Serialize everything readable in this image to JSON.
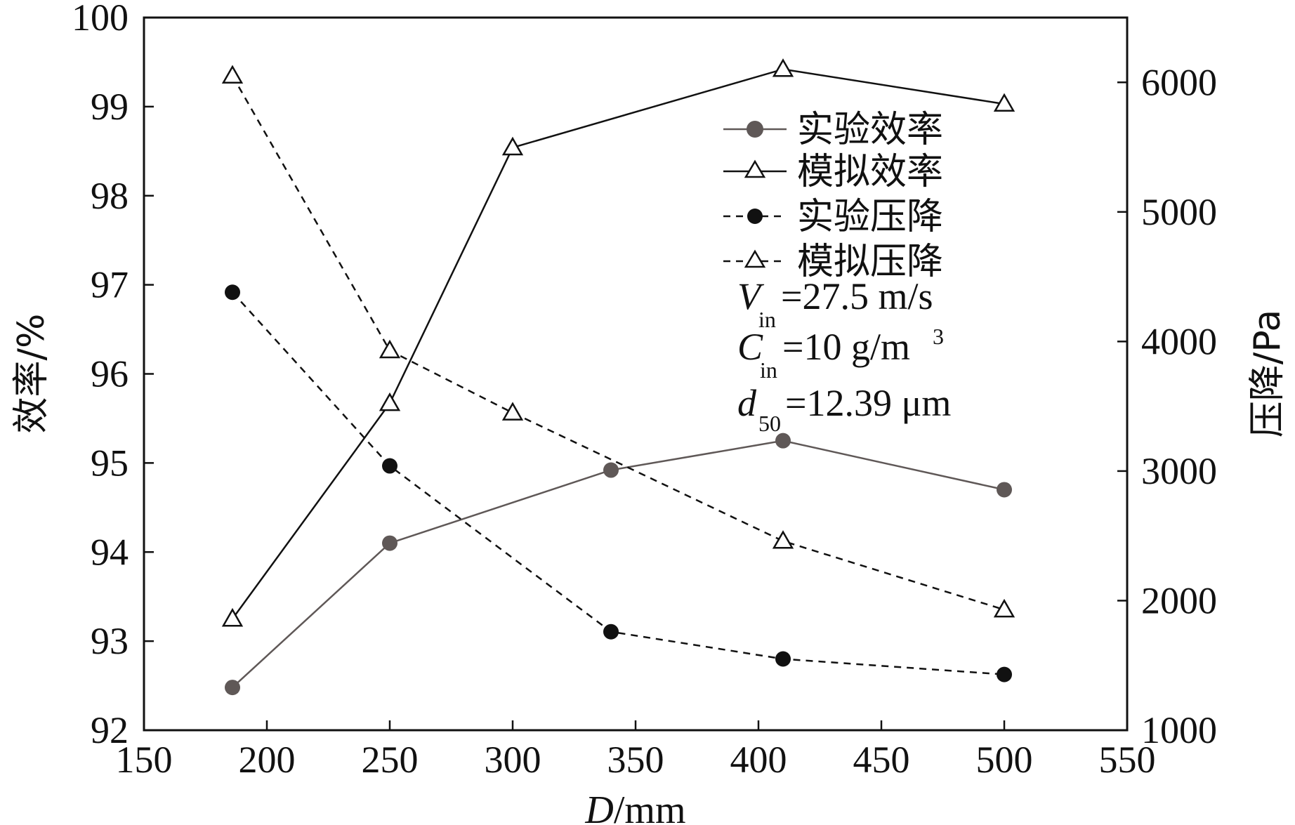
{
  "chart_data": {
    "type": "line",
    "xlabel": {
      "var": "D",
      "unit": "/mm"
    },
    "ylabel_left": "效率/%",
    "ylabel_right": "压降/Pa",
    "xlim": [
      150,
      550
    ],
    "ylim_left": [
      92,
      100
    ],
    "ylim_right": [
      1000,
      6500
    ],
    "x_ticks": [
      150,
      200,
      250,
      300,
      350,
      400,
      450,
      500,
      550
    ],
    "y_ticks_left": [
      92,
      93,
      94,
      95,
      96,
      97,
      98,
      99,
      100
    ],
    "y_ticks_right": [
      1000,
      2000,
      3000,
      4000,
      5000,
      6000
    ],
    "grid": false,
    "legend_position": "top-right",
    "series": [
      {
        "name": "实验效率",
        "axis": "left",
        "x": [
          186,
          250,
          340,
          410,
          500
        ],
        "values": [
          92.48,
          94.1,
          94.92,
          95.25,
          94.7
        ],
        "marker": "circle",
        "marker_color": "#5f5857",
        "line_color": "#5f5857",
        "line_style": "solid"
      },
      {
        "name": "模拟效率",
        "axis": "left",
        "x": [
          186,
          250,
          300,
          410,
          500
        ],
        "values": [
          93.25,
          95.67,
          98.54,
          99.42,
          99.03
        ],
        "marker": "triangle-open",
        "marker_color": "#111111",
        "line_color": "#111111",
        "line_style": "solid"
      },
      {
        "name": "实验压降",
        "axis": "right",
        "x": [
          186,
          250,
          340,
          410,
          500
        ],
        "values": [
          4380,
          3040,
          1760,
          1550,
          1430
        ],
        "marker": "circle",
        "marker_color": "#111111",
        "line_color": "#111111",
        "line_style": "dashed"
      },
      {
        "name": "模拟压降",
        "axis": "right",
        "x": [
          186,
          250,
          300,
          410,
          500
        ],
        "values": [
          6050,
          3930,
          3450,
          2460,
          1930
        ],
        "marker": "triangle-open",
        "marker_color": "#111111",
        "line_color": "#111111",
        "line_style": "dashed"
      }
    ],
    "annotations": [
      {
        "var": "V",
        "sub": "in",
        "value": "=27.5 m/s",
        "sup": ""
      },
      {
        "var": "C",
        "sub": "in",
        "value": "=10 g/m",
        "sup": "3"
      },
      {
        "var": "d",
        "sub": "50",
        "value": "=12.39 μm",
        "sup": ""
      }
    ]
  }
}
